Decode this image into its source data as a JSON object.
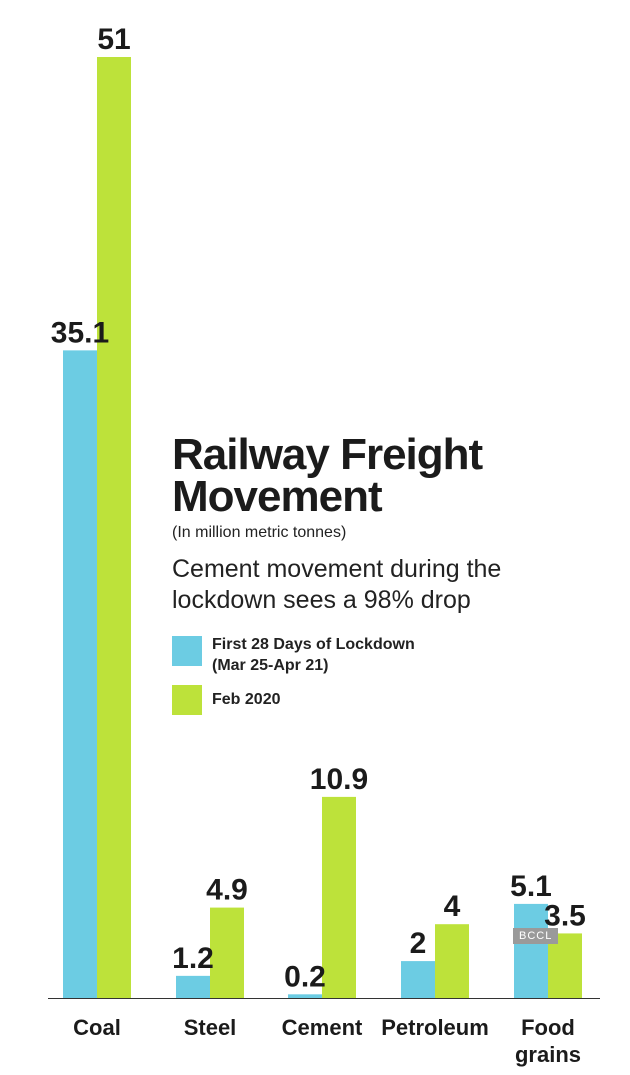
{
  "chart_data": {
    "type": "bar",
    "title": "Railway Freight Movement",
    "unit_note": "(In million metric tonnes)",
    "subtitle": "Cement movement during the lockdown sees a 98% drop",
    "categories": [
      "Coal",
      "Steel",
      "Cement",
      "Petroleum",
      "Food\ngrains"
    ],
    "series": [
      {
        "name": "First 28 Days of Lockdown (Mar 25-Apr 21)",
        "color": "#6ccce3",
        "values": [
          35.1,
          1.2,
          0.2,
          2,
          5.1
        ],
        "labels": [
          "35.1",
          "1.2",
          "0.2",
          "2",
          "5.1"
        ]
      },
      {
        "name": "Feb 2020",
        "color": "#bde23a",
        "values": [
          51,
          4.9,
          10.9,
          4,
          3.5
        ],
        "labels": [
          "51",
          "4.9",
          "10.9",
          "4",
          "3.5"
        ]
      }
    ],
    "ylim": [
      0,
      51
    ],
    "grid": false,
    "legend_position": "middle-right"
  },
  "legend": {
    "series1_line1": "First 28 Days of Lockdown",
    "series1_line2": "(Mar 25-Apr 21)",
    "series2": "Feb 2020"
  },
  "watermark": "BCCL"
}
